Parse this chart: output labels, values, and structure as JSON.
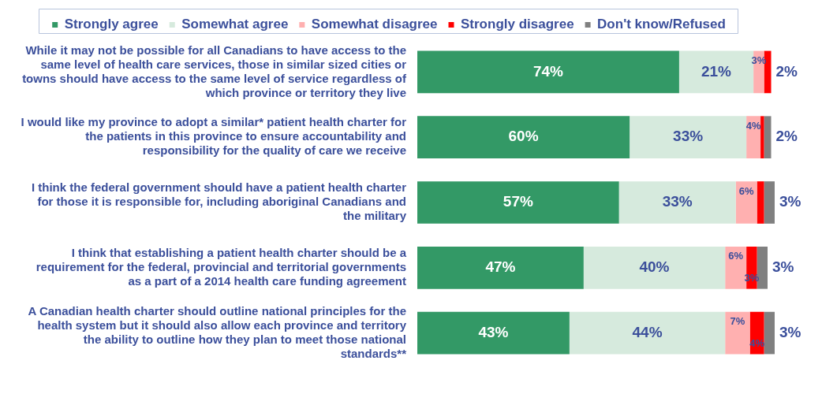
{
  "chart_data": {
    "type": "bar",
    "orientation": "horizontal",
    "stacked": true,
    "categories": [
      "While it may not be possible for all Canadians to have access to the same level of health care services, those in similar sized cities or towns should have access to the same level of service regardless of which province or territory they live",
      "I would like my province to adopt a similar* patient health charter for the patients in this province to ensure accountability and responsibility for the quality of care we receive",
      "I think the federal government should have a patient health charter for those it is responsible for, including aboriginal Canadians and the military",
      "I think that establishing a patient health charter should be a requirement for the federal, provincial and territorial governments as a part of a 2014 health care funding agreement",
      "A Canadian health charter should outline national principles for the health system but it should also allow each province and territory the ability to outline how they plan to meet those national standards**"
    ],
    "series": [
      {
        "name": "Strongly agree",
        "color": "#339966",
        "values": [
          74,
          60,
          57,
          47,
          43
        ],
        "value_labels": [
          "74%",
          "60%",
          "57%",
          "47%",
          "43%"
        ]
      },
      {
        "name": "Somewhat agree",
        "color": "#d6eadd",
        "values": [
          21,
          33,
          33,
          40,
          44
        ],
        "value_labels": [
          "21%",
          "33%",
          "33%",
          "40%",
          "44%"
        ]
      },
      {
        "name": "Somewhat disagree",
        "color": "#ffb0b0",
        "values": [
          3,
          4,
          6,
          6,
          7
        ],
        "value_labels": [
          "3%",
          "4%",
          "6%",
          "6%",
          "7%"
        ]
      },
      {
        "name": "Strongly disagree",
        "color": "#ff0000",
        "values": [
          2,
          1,
          2,
          3,
          4
        ],
        "value_labels": [
          "2%",
          null,
          null,
          "3%",
          "4%"
        ]
      },
      {
        "name": "Don't know/Refused",
        "color": "#808080",
        "values": [
          0,
          2,
          3,
          3,
          3
        ],
        "value_labels": [
          null,
          "2%",
          "3%",
          "3%",
          "3%"
        ]
      }
    ],
    "xlim": [
      0,
      101
    ],
    "tick_labels": "y",
    "legend": "top"
  }
}
